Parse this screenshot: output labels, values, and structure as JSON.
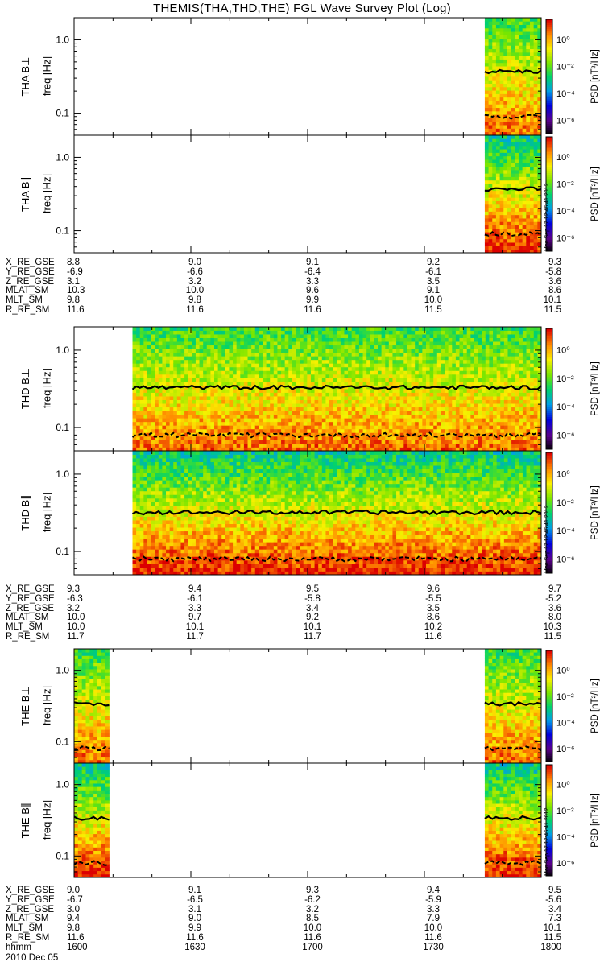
{
  "title": "THEMIS(THA,THD,THE) FGL Wave Survey Plot (Log)",
  "colorbar": {
    "label": "PSD [nT²/Hz]",
    "tick_labels": [
      "10⁰",
      "10⁻²",
      "10⁻⁴",
      "10⁻⁶"
    ],
    "log_range": [
      -7,
      1.5
    ]
  },
  "freq_axis": {
    "label": "freq [Hz]",
    "scale": "log",
    "range_hz": [
      0.05,
      2.0
    ],
    "ticks": [
      "1.0",
      "0.1"
    ]
  },
  "chart_data": [
    {
      "type": "heatmap",
      "probe": "THA",
      "component": "THA B⊥",
      "data_coverage_hhmm": [
        "1746",
        "1800"
      ],
      "solid_line_freq_hz": 0.37,
      "dashed_line_freq_hz": 0.09
    },
    {
      "type": "heatmap",
      "probe": "THA",
      "component": "THA B∥",
      "data_coverage_hhmm": [
        "1746",
        "1800"
      ],
      "solid_line_freq_hz": 0.37,
      "dashed_line_freq_hz": 0.09
    },
    {
      "type": "heatmap",
      "probe": "THD",
      "component": "THD B⊥",
      "data_coverage_hhmm": [
        "1615",
        "1800"
      ],
      "solid_line_freq_hz": 0.33,
      "dashed_line_freq_hz": 0.08
    },
    {
      "type": "heatmap",
      "probe": "THD",
      "component": "THD B∥",
      "data_coverage_hhmm": [
        "1615",
        "1800"
      ],
      "solid_line_freq_hz": 0.32,
      "dashed_line_freq_hz": 0.08
    },
    {
      "type": "heatmap",
      "probe": "THE",
      "component": "THE B⊥",
      "data_coverage_hhmm": [
        [
          "1600",
          "1609"
        ],
        [
          "1746",
          "1800"
        ]
      ],
      "solid_line_freq_hz": 0.34,
      "dashed_line_freq_hz": 0.08
    },
    {
      "type": "heatmap",
      "probe": "THE",
      "component": "THE B∥",
      "data_coverage_hhmm": [
        [
          "1600",
          "1609"
        ],
        [
          "1746",
          "1800"
        ]
      ],
      "solid_line_freq_hz": 0.34,
      "dashed_line_freq_hz": 0.08
    }
  ],
  "ephemeris": [
    {
      "probe": "THA",
      "rows": [
        {
          "name": "X_RE_GSE",
          "values": [
            "8.8",
            "9.0",
            "9.1",
            "9.2",
            "9.3"
          ]
        },
        {
          "name": "Y_RE_GSE",
          "values": [
            "-6.9",
            "-6.6",
            "-6.4",
            "-6.1",
            "-5.8"
          ]
        },
        {
          "name": "Z_RE_GSE",
          "values": [
            "3.1",
            "3.2",
            "3.3",
            "3.5",
            "3.6"
          ]
        },
        {
          "name": "MLAT_SM",
          "values": [
            "10.3",
            "10.0",
            "9.6",
            "9.1",
            "8.6"
          ]
        },
        {
          "name": "MLT_SM",
          "values": [
            "9.8",
            "9.8",
            "9.9",
            "10.0",
            "10.1"
          ]
        },
        {
          "name": "R_RE_SM",
          "values": [
            "11.6",
            "11.6",
            "11.6",
            "11.5",
            "11.5"
          ]
        }
      ]
    },
    {
      "probe": "THD",
      "rows": [
        {
          "name": "X_RE_GSE",
          "values": [
            "9.3",
            "9.4",
            "9.5",
            "9.6",
            "9.7"
          ]
        },
        {
          "name": "Y_RE_GSE",
          "values": [
            "-6.3",
            "-6.1",
            "-5.8",
            "-5.5",
            "-5.2"
          ]
        },
        {
          "name": "Z_RE_GSE",
          "values": [
            "3.2",
            "3.3",
            "3.4",
            "3.5",
            "3.6"
          ]
        },
        {
          "name": "MLAT_SM",
          "values": [
            "10.0",
            "9.7",
            "9.2",
            "8.6",
            "8.0"
          ]
        },
        {
          "name": "MLT_SM",
          "values": [
            "10.0",
            "10.1",
            "10.1",
            "10.2",
            "10.3"
          ]
        },
        {
          "name": "R_RE_SM",
          "values": [
            "11.7",
            "11.7",
            "11.7",
            "11.6",
            "11.5"
          ]
        }
      ]
    },
    {
      "probe": "THE",
      "rows": [
        {
          "name": "X_RE_GSE",
          "values": [
            "9.0",
            "9.1",
            "9.3",
            "9.4",
            "9.5"
          ]
        },
        {
          "name": "Y_RE_GSE",
          "values": [
            "-6.7",
            "-6.5",
            "-6.2",
            "-5.9",
            "-5.6"
          ]
        },
        {
          "name": "Z_RE_GSE",
          "values": [
            "3.0",
            "3.1",
            "3.2",
            "3.3",
            "3.4"
          ]
        },
        {
          "name": "MLAT_SM",
          "values": [
            "9.4",
            "9.0",
            "8.5",
            "7.9",
            "7.3"
          ]
        },
        {
          "name": "MLT_SM",
          "values": [
            "9.8",
            "9.9",
            "10.0",
            "10.0",
            "10.1"
          ]
        },
        {
          "name": "R_RE_SM",
          "values": [
            "11.6",
            "11.6",
            "11.6",
            "11.6",
            "11.5"
          ]
        },
        {
          "name": "hhmm",
          "values": [
            "1600",
            "1630",
            "1700",
            "1730",
            "1800"
          ]
        }
      ]
    }
  ],
  "date": "2010 Dec 05",
  "timestamp": "Mon Sep 17 12:46:41 2012"
}
